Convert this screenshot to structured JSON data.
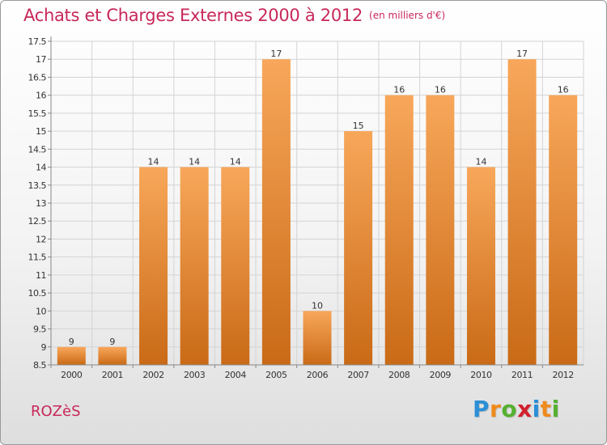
{
  "title": "Achats et Charges Externes 2000 à 2012",
  "unit": "(en milliers d'€)",
  "commune": "ROZèS",
  "logo": {
    "text": "Proxiti",
    "letters": [
      {
        "char": "P",
        "color": "#2b8fd6"
      },
      {
        "char": "r",
        "color": "#f08a1c"
      },
      {
        "char": "o",
        "color": "#55b030"
      },
      {
        "char": "x",
        "color": "#d2202f"
      },
      {
        "char": "i",
        "color": "#2b8fd6"
      },
      {
        "char": "t",
        "color": "#f08a1c"
      },
      {
        "char": "i",
        "color": "#55b030"
      }
    ]
  },
  "colors": {
    "title": "#c8285a",
    "bar_top": "#f8a75a",
    "bar_bottom": "#c96a16",
    "grid": "#d4d4d4",
    "axis": "#888888"
  },
  "chart_data": {
    "type": "bar",
    "categories": [
      "2000",
      "2001",
      "2002",
      "2003",
      "2004",
      "2005",
      "2006",
      "2007",
      "2008",
      "2009",
      "2010",
      "2011",
      "2012"
    ],
    "values": [
      9,
      9,
      14,
      14,
      14,
      17,
      10,
      15,
      16,
      16,
      14,
      17,
      16
    ],
    "value_labels": [
      "9",
      "9",
      "14",
      "14",
      "14",
      "17",
      "10",
      "15",
      "16",
      "16",
      "14",
      "17",
      "16"
    ],
    "ylim": [
      8.5,
      17.5
    ],
    "yticks": [
      8.5,
      9,
      9.5,
      10,
      10.5,
      11,
      11.5,
      12,
      12.5,
      13,
      13.5,
      14,
      14.5,
      15,
      15.5,
      16,
      16.5,
      17,
      17.5
    ],
    "ytick_labels": [
      "8.5",
      "9",
      "9.5",
      "10",
      "10.5",
      "11",
      "11.5",
      "12",
      "12.5",
      "13",
      "13.5",
      "14",
      "14.5",
      "15",
      "15.5",
      "16",
      "16.5",
      "17",
      "17.5"
    ],
    "grid": true,
    "legend": "none"
  }
}
